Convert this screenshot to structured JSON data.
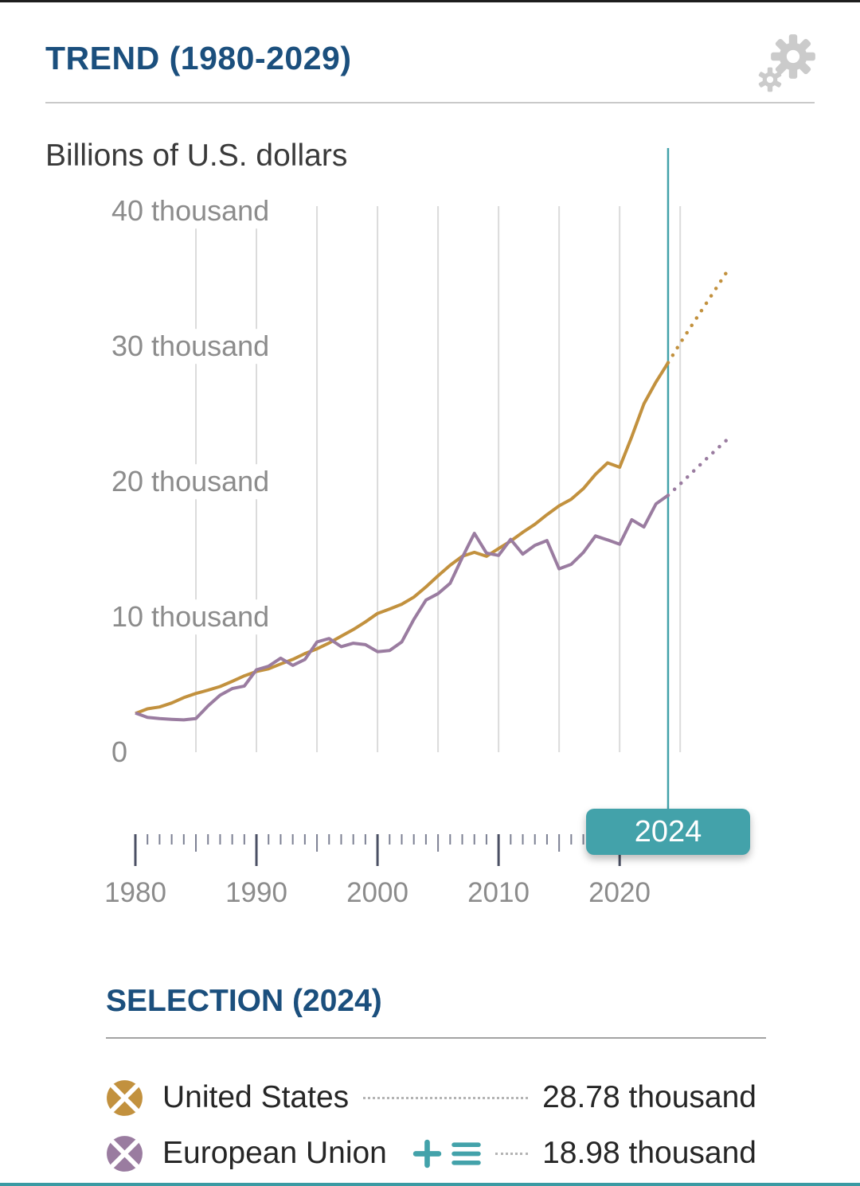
{
  "header": {
    "title": "TREND (1980-2029)"
  },
  "icons": {
    "settings": "gear-icon",
    "add": "plus-icon",
    "details": "list-icon",
    "series_marker": "circle-x-icon"
  },
  "chart": {
    "unit_label": "Billions of U.S. dollars",
    "y_ticks": [
      "40 thousand",
      "30 thousand",
      "20 thousand",
      "10 thousand",
      "0"
    ],
    "x_ticks": [
      "1980",
      "1990",
      "2000",
      "2010",
      "2020"
    ],
    "selected_year_badge": "2024"
  },
  "selection": {
    "title": "SELECTION (2024)",
    "accent_color": "#43a2aa",
    "rows": [
      {
        "label": "United States",
        "value": "28.78 thousand",
        "color": "#c2913e"
      },
      {
        "label": "European Union",
        "value": "18.98 thousand",
        "color": "#9a7ca0"
      }
    ]
  },
  "chart_data": {
    "type": "line",
    "title": "TREND (1980-2029)",
    "ylabel": "Billions of U.S. dollars",
    "ylim": [
      0,
      40000
    ],
    "xlim": [
      1980,
      2029
    ],
    "selected_x": 2024,
    "accent_color": "#43a2aa",
    "grid": "vertical-only",
    "legend_position": "bottom",
    "x": [
      1980,
      1981,
      1982,
      1983,
      1984,
      1985,
      1986,
      1987,
      1988,
      1989,
      1990,
      1991,
      1992,
      1993,
      1994,
      1995,
      1996,
      1997,
      1998,
      1999,
      2000,
      2001,
      2002,
      2003,
      2004,
      2005,
      2006,
      2007,
      2008,
      2009,
      2010,
      2011,
      2012,
      2013,
      2014,
      2015,
      2016,
      2017,
      2018,
      2019,
      2020,
      2021,
      2022,
      2023,
      2024,
      2025,
      2026,
      2027,
      2028,
      2029
    ],
    "series": [
      {
        "name": "United States",
        "color": "#c2913e",
        "style_after_selected": "dotted",
        "values": [
          2857,
          3207,
          3344,
          3634,
          4038,
          4339,
          4580,
          4855,
          5236,
          5642,
          5963,
          6158,
          6520,
          6859,
          7287,
          7640,
          8073,
          8578,
          9063,
          9631,
          10251,
          10582,
          10936,
          11458,
          12214,
          13037,
          13815,
          14474,
          14770,
          14478,
          15049,
          15600,
          16254,
          16843,
          17551,
          18206,
          18695,
          19477,
          20533,
          21381,
          21061,
          23315,
          25744,
          27361,
          28781,
          30227,
          31605,
          32958,
          34328,
          35700
        ]
      },
      {
        "name": "European Union",
        "color": "#9a7ca0",
        "style_after_selected": "dotted",
        "values": [
          2900,
          2570,
          2480,
          2430,
          2390,
          2480,
          3420,
          4210,
          4700,
          4890,
          6090,
          6350,
          6950,
          6420,
          6850,
          8150,
          8400,
          7800,
          8050,
          7950,
          7430,
          7520,
          8150,
          9810,
          11240,
          11720,
          12480,
          14380,
          16170,
          14720,
          14540,
          15730,
          14640,
          15290,
          15640,
          13550,
          13880,
          14760,
          15980,
          15690,
          15370,
          17180,
          16640,
          18350,
          18980,
          19820,
          20680,
          21540,
          22380,
          23200
        ]
      }
    ]
  }
}
